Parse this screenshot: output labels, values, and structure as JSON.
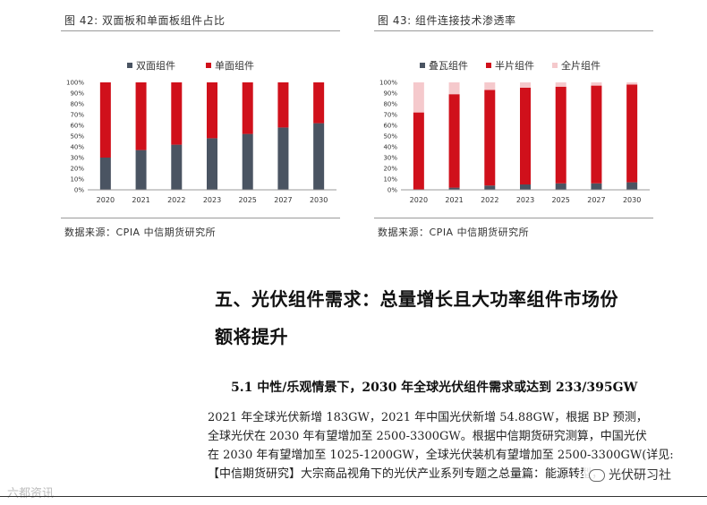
{
  "figures": [
    {
      "title": "图 42:    双面板和单面板组件占比",
      "source": "数据来源：CPIA 中信期货研究所",
      "chart_data": {
        "type": "bar",
        "stacked": true,
        "categories": [
          "2020",
          "2021",
          "2022",
          "2023",
          "2025",
          "2027",
          "2030"
        ],
        "series": [
          {
            "name": "双面组件",
            "color": "#4a5462",
            "values": [
              30,
              37,
              42,
              48,
              52,
              58,
              62
            ]
          },
          {
            "name": "单面组件",
            "color": "#d0101b",
            "values": [
              70,
              63,
              58,
              52,
              48,
              42,
              38
            ]
          }
        ],
        "yticks": [
          "0%",
          "10%",
          "20%",
          "30%",
          "40%",
          "50%",
          "60%",
          "70%",
          "80%",
          "90%",
          "100%"
        ],
        "ylim": [
          0,
          100
        ],
        "legend": "top-center",
        "grid": false
      }
    },
    {
      "title": "图 43:    组件连接技术渗透率",
      "source": "数据来源：CPIA 中信期货研究所",
      "chart_data": {
        "type": "bar",
        "stacked": true,
        "categories": [
          "2020",
          "2021",
          "2022",
          "2023",
          "2025",
          "2027",
          "2030"
        ],
        "series": [
          {
            "name": "叠瓦组件",
            "color": "#4a5462",
            "values": [
              0,
              2,
              4,
              5,
              6,
              6,
              7
            ]
          },
          {
            "name": "半片组件",
            "color": "#d0101b",
            "values": [
              72,
              87,
              89,
              90,
              90,
              91,
              91
            ]
          },
          {
            "name": "全片组件",
            "color": "#f5c9cc",
            "values": [
              28,
              11,
              7,
              5,
              4,
              3,
              2
            ]
          }
        ],
        "yticks": [
          "0%",
          "10%",
          "20%",
          "30%",
          "40%",
          "50%",
          "60%",
          "70%",
          "80%",
          "90%",
          "100%"
        ],
        "ylim": [
          0,
          100
        ],
        "legend": "top-center",
        "grid": false
      }
    }
  ],
  "section": {
    "heading_line1": "五、光伏组件需求：总量增长且大功率组件市场份",
    "heading_line2": "额将提升",
    "subheading": "5.1 中性/乐观情景下，2030 年全球光伏组件需求或达到 233/395GW",
    "paragraph_lines": [
      "      2021 年全球光伏新增 183GW，2021 年中国光伏新增 54.88GW，根据 BP 预测，",
      "全球光伏在 2030 年有望增加至 2500-3300GW。根据中信期货研究测算，中国光伏",
      "在 2030 年有望增加至 1025-1200GW，全球光伏装机有望增加至 2500-3300GW(详见:",
      "【中信期货研究】大宗商品视角下的光伏产业系列专题之总量篇：能源转型，"
    ]
  },
  "watermarks": {
    "left": "六都资讯",
    "right": "光伏研习社"
  }
}
